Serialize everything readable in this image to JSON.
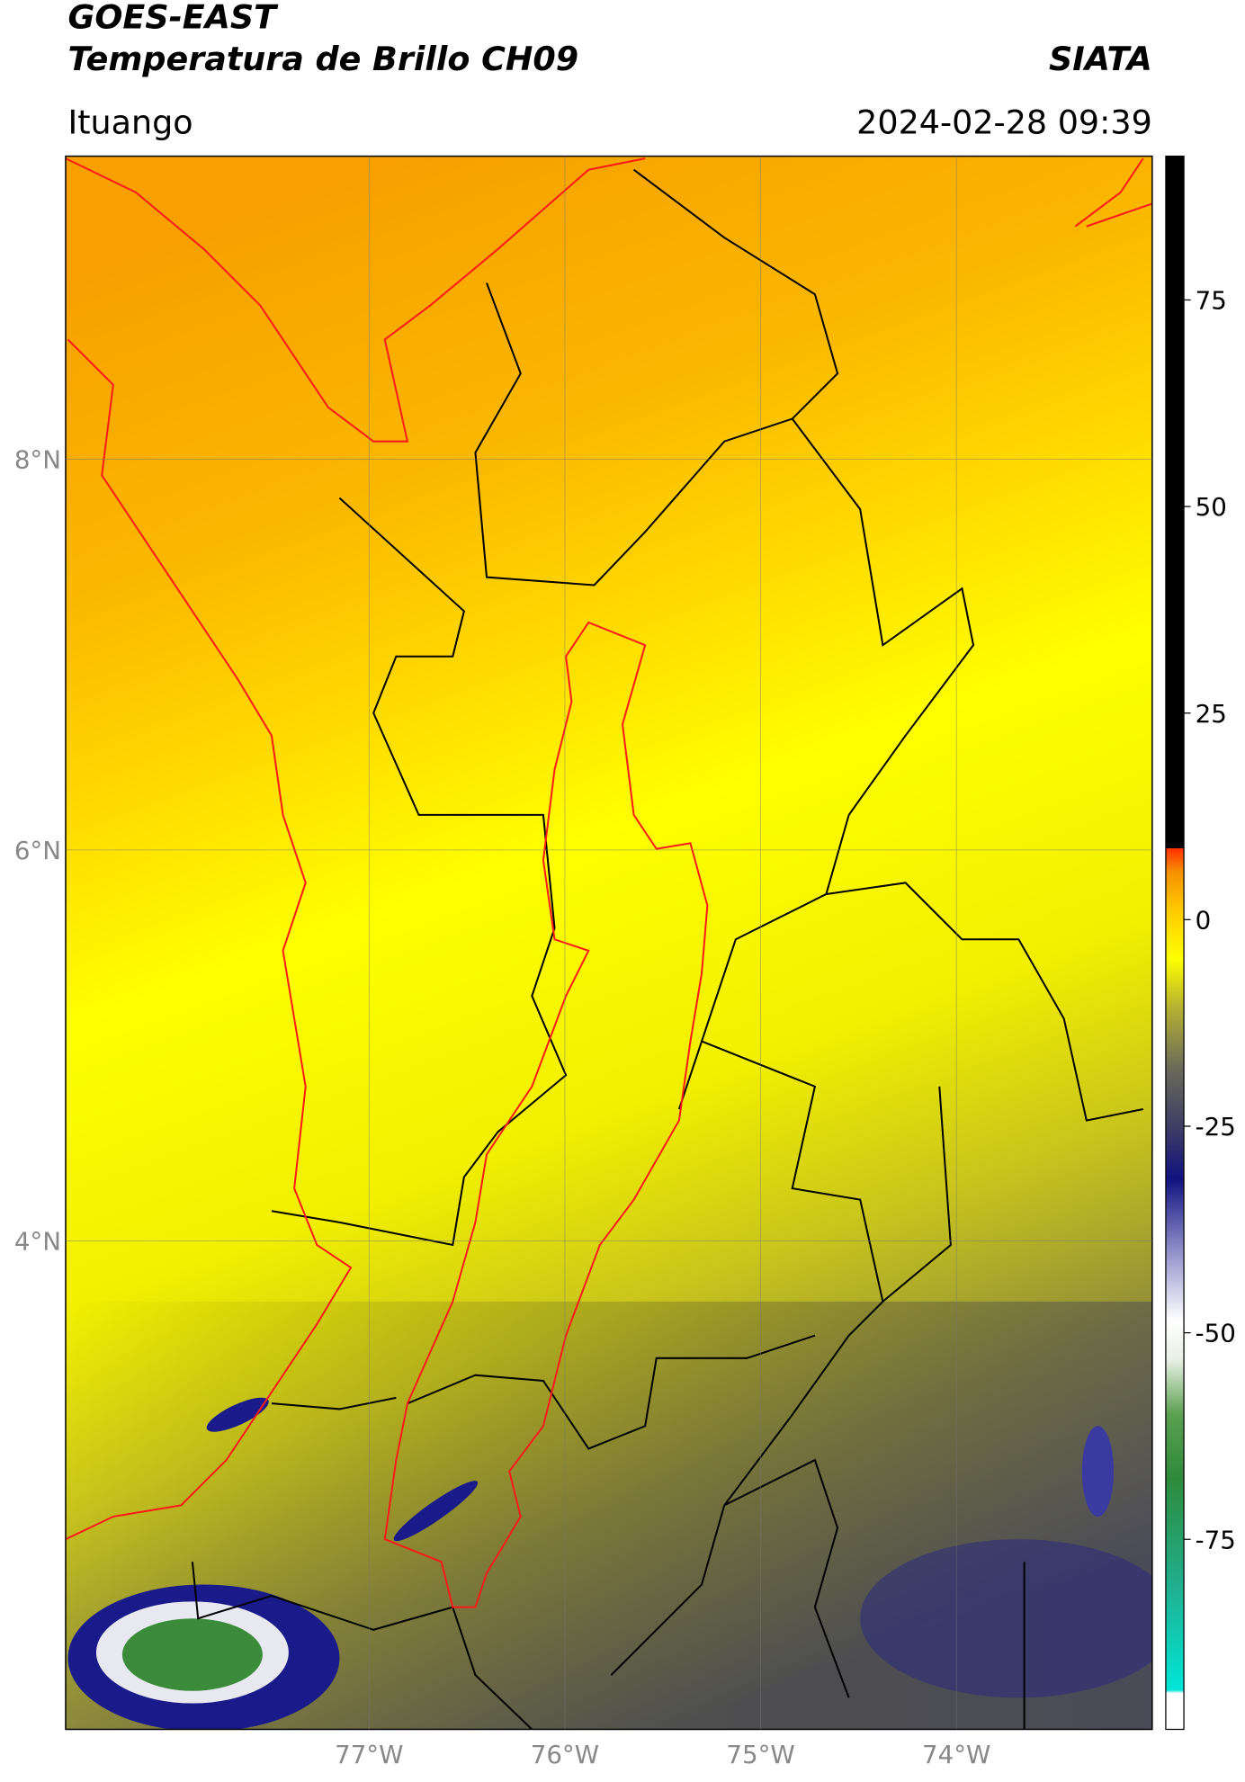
{
  "header": {
    "title": "GOES-EAST",
    "subtitle": "Temperatura de Brillo CH09",
    "source": "SIATA",
    "location": "Ituango",
    "timestamp": "2024-02-28 09:39"
  },
  "map": {
    "lon_lim": [
      -78.55,
      -73.0
    ],
    "lat_lim": [
      1.5,
      9.55
    ],
    "xticks": [
      {
        "value": -77,
        "label": "77°W"
      },
      {
        "value": -76,
        "label": "76°W"
      },
      {
        "value": -75,
        "label": "75°W"
      },
      {
        "value": -74,
        "label": "74°W"
      }
    ],
    "yticks": [
      {
        "value": 4,
        "label": "4°N"
      },
      {
        "value": 6,
        "label": "6°N"
      },
      {
        "value": 8,
        "label": "8°N"
      }
    ],
    "grid": true
  },
  "colorbar": {
    "lim": [
      -98,
      92.4
    ],
    "ticks": [
      -75,
      -50,
      -25,
      0,
      25,
      50,
      75
    ]
  }
}
